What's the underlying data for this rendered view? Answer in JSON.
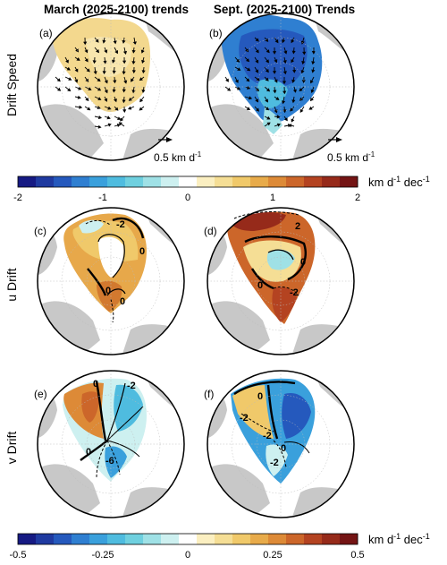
{
  "chart_data": {
    "type": "map-panels",
    "column_titles": [
      "March (2025-2100) trends",
      "Sept. (2025-2100) Trends"
    ],
    "row_labels": [
      "Drift Speed",
      "u Drift",
      "v Drift"
    ],
    "panels": [
      {
        "id": "a",
        "label": "(a)",
        "row": "Drift Speed",
        "column": "March",
        "contour_labels": []
      },
      {
        "id": "b",
        "label": "(b)",
        "row": "Drift Speed",
        "column": "Sept.",
        "contour_labels": []
      },
      {
        "id": "c",
        "label": "(c)",
        "row": "u Drift",
        "column": "March",
        "contour_labels": [
          "-2",
          "0",
          "0",
          "0"
        ]
      },
      {
        "id": "d",
        "label": "(d)",
        "row": "u Drift",
        "column": "Sept.",
        "contour_labels": [
          "2",
          "0",
          "0",
          "-2"
        ]
      },
      {
        "id": "e",
        "label": "(e)",
        "row": "v Drift",
        "column": "March",
        "contour_labels": [
          "0",
          "-2",
          "0",
          "-6"
        ]
      },
      {
        "id": "f",
        "label": "(f)",
        "row": "v Drift",
        "column": "Sept.",
        "contour_labels": [
          "0",
          "-2",
          "-2",
          "0",
          "-2"
        ]
      }
    ],
    "vector_reference": {
      "label": "0.5 km d",
      "exponent": "-1"
    },
    "colorbars": [
      {
        "ticks": [
          "-2",
          "-1",
          "0",
          "1",
          "2"
        ],
        "units_main": "km d",
        "units_exp": "-1",
        "units_tail": " dec",
        "units_exp2": "-1"
      },
      {
        "ticks": [
          "-0.5",
          "-0.25",
          "0",
          "0.25",
          "0.5"
        ],
        "units_main": "km d",
        "units_exp": "-1",
        "units_tail": " dec",
        "units_exp2": "-1"
      }
    ],
    "palette": [
      "#161a83",
      "#1f3aa0",
      "#2559bd",
      "#2f7fd1",
      "#3aa0dc",
      "#4fbcdf",
      "#6fd0df",
      "#9fe1e6",
      "#cdf0f0",
      "#ffffff",
      "#fbefc1",
      "#f5de95",
      "#f0c96a",
      "#e8ab4a",
      "#dd8a37",
      "#cc662a",
      "#b44321",
      "#962a1a",
      "#741414"
    ]
  },
  "colors": {
    "land": "#c8c8c8",
    "ocean": "#ffffff",
    "grid": "#bbbbbb"
  }
}
